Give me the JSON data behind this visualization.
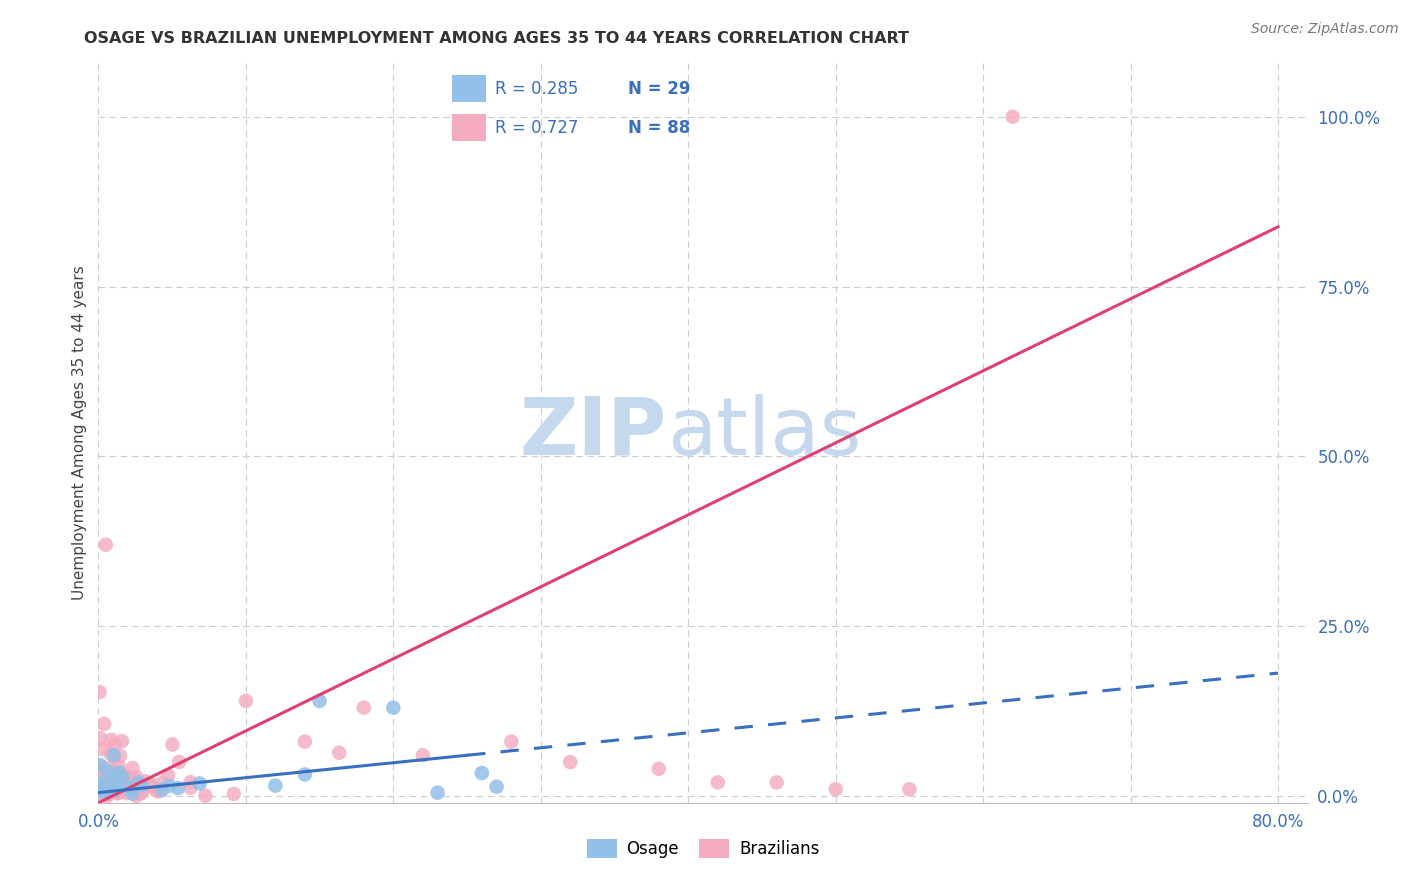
{
  "title": "OSAGE VS BRAZILIAN UNEMPLOYMENT AMONG AGES 35 TO 44 YEARS CORRELATION CHART",
  "source": "Source: ZipAtlas.com",
  "ylabel": "Unemployment Among Ages 35 to 44 years",
  "xlim": [
    0.0,
    0.82
  ],
  "ylim": [
    -0.01,
    1.08
  ],
  "xtick_positions": [
    0.0,
    0.1,
    0.2,
    0.3,
    0.4,
    0.5,
    0.6,
    0.7,
    0.8
  ],
  "xticklabels": [
    "0.0%",
    "",
    "",
    "",
    "",
    "",
    "",
    "",
    "80.0%"
  ],
  "ytick_positions": [
    0.0,
    0.25,
    0.5,
    0.75,
    1.0
  ],
  "yticklabels_right": [
    "0.0%",
    "25.0%",
    "50.0%",
    "75.0%",
    "100.0%"
  ],
  "osage_color": "#92C0E8",
  "osage_line_color": "#3A6EBE",
  "brazilian_color": "#F4AABF",
  "brazilian_line_color": "#E04070",
  "legend_text_color": "#3A6EBE",
  "legend_r_color": "#222222",
  "watermark_color": "#C5D8EE",
  "grid_color": "#CCCCCC",
  "bg_color": "#FFFFFF",
  "title_color": "#333333",
  "ylabel_color": "#444444",
  "tick_color": "#3A6EBE",
  "osage_trend_solid_end": 0.25,
  "braz_trend_slope": 1.06,
  "braz_trend_intercept": -0.01,
  "osage_trend_slope": 0.22,
  "osage_trend_intercept": 0.005
}
